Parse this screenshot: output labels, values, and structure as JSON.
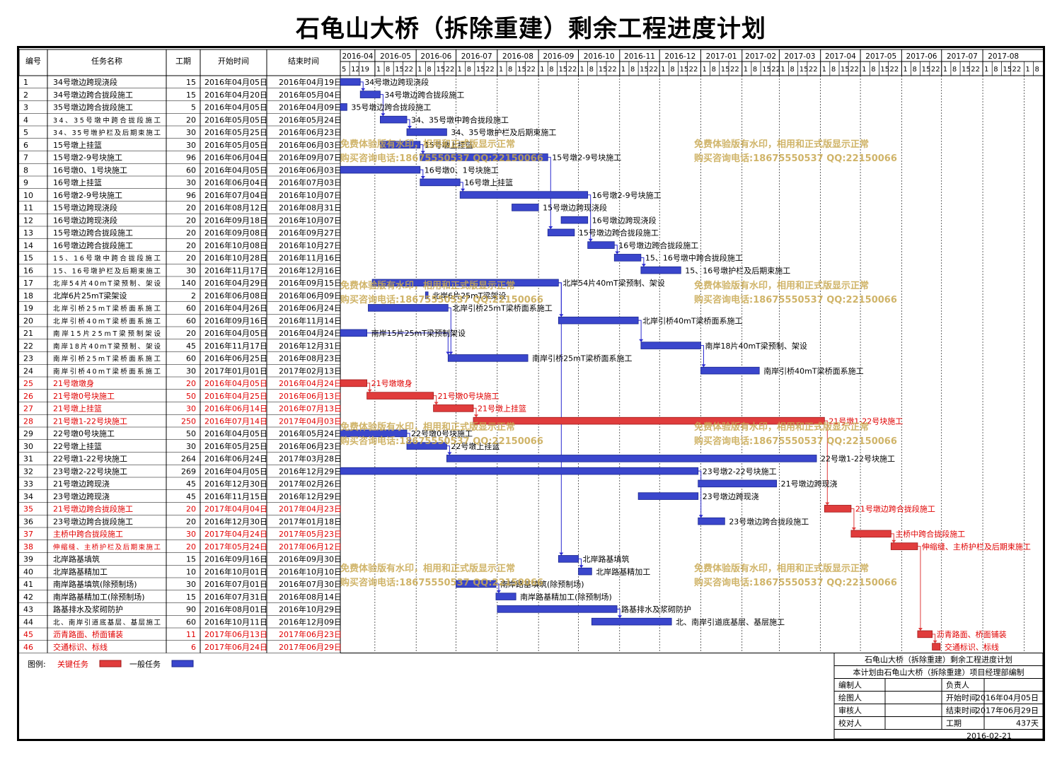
{
  "title": "石龟山大桥（拆除重建）剩余工程进度计划",
  "columns": {
    "id": "编号",
    "name": "任务名称",
    "dur": "工期",
    "start": "开始时间",
    "end": "结束时间"
  },
  "timeline_months": [
    "2016-04",
    "2016-05",
    "2016-06",
    "2016-07",
    "2016-08",
    "2016-09",
    "2016-10",
    "2016-11",
    "2016-12",
    "2017-01",
    "2017-02",
    "2017-03",
    "2017-04",
    "2017-05",
    "2017-06",
    "2017-07",
    "2017-08"
  ],
  "week_labels": [
    [
      "5",
      "12",
      "19"
    ],
    [
      "1",
      "8",
      "15",
      "22"
    ],
    [
      "1",
      "8",
      "15",
      "22"
    ],
    [
      "1",
      "8",
      "15",
      "22"
    ],
    [
      "1",
      "8",
      "15",
      "22"
    ],
    [
      "1",
      "8",
      "15",
      "22"
    ],
    [
      "1",
      "8",
      "15",
      "22"
    ],
    [
      "1",
      "8",
      "15",
      "22"
    ],
    [
      "1",
      "8",
      "15",
      "22"
    ],
    [
      "1",
      "8",
      "15",
      "22"
    ],
    [
      "1",
      "8",
      "15",
      "22"
    ],
    [
      "1",
      "8",
      "15",
      "22"
    ],
    [
      "1",
      "8",
      "15",
      "22"
    ],
    [
      "1",
      "8",
      "15",
      "22"
    ],
    [
      "1",
      "8",
      "15",
      "22"
    ],
    [
      "1",
      "8",
      "15",
      "22"
    ],
    [
      "1",
      "8",
      "15",
      "22"
    ],
    [
      "1",
      "8"
    ]
  ],
  "legend": {
    "label": "图例:",
    "critical": "关键任务",
    "normal": "一般任务"
  },
  "colors": {
    "critical": "#e03c3c",
    "normal": "#3a46cc",
    "critical_text": "#e00000",
    "watermark": "#c8a850",
    "link": "#2a2ad0"
  },
  "watermarks": {
    "line1": "免费体验版有水印，相用和正式版显示正常",
    "line2": "购买咨询电话:18675550537 QQ:22150066"
  },
  "info_box": {
    "title": "石龟山大桥（拆除重建）剩余工程进度计划",
    "subtitle": "本计划由石龟山大桥（拆除重建）项目经理部编制",
    "rows": [
      [
        "编制人",
        "",
        "负责人",
        ""
      ],
      [
        "绘图人",
        "",
        "开始时间",
        "2016年04月05日"
      ],
      [
        "审核人",
        "",
        "结束时间",
        "2017年06月29日"
      ],
      [
        "校对人",
        "",
        "工期",
        "437天"
      ]
    ],
    "date": "2016-02-21"
  },
  "chart_data": {
    "type": "gantt",
    "title": "石龟山大桥（拆除重建）剩余工程进度计划",
    "tasks": [
      {
        "id": "1",
        "name": "34号墩边跨现浇段",
        "dur": 15,
        "start": "2016-04-05",
        "end": "2016-04-19",
        "start_label": "2016年04月05日",
        "end_label": "2016年04月19日",
        "critical": false,
        "bar_label": "34号墩边跨现浇段"
      },
      {
        "id": "2",
        "name": "34号墩边跨合拢段施工",
        "dur": 15,
        "start": "2016-04-20",
        "end": "2016-05-04",
        "start_label": "2016年04月20日",
        "end_label": "2016年05月04日",
        "critical": false,
        "bar_label": "34号墩边跨合拢段施工"
      },
      {
        "id": "3",
        "name": "35号墩边跨合拢段施工",
        "dur": 5,
        "start": "2016-04-05",
        "end": "2016-04-09",
        "start_label": "2016年04月05日",
        "end_label": "2016年04月09日",
        "critical": false,
        "bar_label": "35号墩边跨合拢段施工"
      },
      {
        "id": "4",
        "name": "34、35号墩中跨合拢段施工",
        "dur": 20,
        "start": "2016-05-05",
        "end": "2016-05-24",
        "start_label": "2016年05月05日",
        "end_label": "2016年05月24日",
        "critical": false,
        "bar_label": "34、35号墩中跨合拢段施工"
      },
      {
        "id": "5",
        "name": "34、35号墩护栏及后期束施工",
        "dur": 30,
        "start": "2016-05-25",
        "end": "2016-06-23",
        "start_label": "2016年05月25日",
        "end_label": "2016年06月23日",
        "critical": false,
        "bar_label": "34、35号墩护栏及后期束施工"
      },
      {
        "id": "6",
        "name": "15号墩上挂篮",
        "dur": 30,
        "start": "2016-05-05",
        "end": "2016-06-03",
        "start_label": "2016年05月05日",
        "end_label": "2016年06月03日",
        "critical": false,
        "bar_label": "15号墩上挂篮"
      },
      {
        "id": "7",
        "name": "15号墩2-9号块施工",
        "dur": 96,
        "start": "2016-06-04",
        "end": "2016-09-07",
        "start_label": "2016年06月04日",
        "end_label": "2016年09月07日",
        "critical": false,
        "bar_label": "15号墩2-9号块施工"
      },
      {
        "id": "8",
        "name": "16号墩0、1号块施工",
        "dur": 60,
        "start": "2016-04-05",
        "end": "2016-06-03",
        "start_label": "2016年04月05日",
        "end_label": "2016年06月03日",
        "critical": false,
        "bar_label": "16号墩0、1号块施工"
      },
      {
        "id": "9",
        "name": "16号墩上挂篮",
        "dur": 30,
        "start": "2016-06-04",
        "end": "2016-07-03",
        "start_label": "2016年06月04日",
        "end_label": "2016年07月03日",
        "critical": false,
        "bar_label": "16号墩上挂篮"
      },
      {
        "id": "10",
        "name": "16号墩2-9号块施工",
        "dur": 96,
        "start": "2016-07-04",
        "end": "2016-10-07",
        "start_label": "2016年07月04日",
        "end_label": "2016年10月07日",
        "critical": false,
        "bar_label": "16号墩2-9号块施工"
      },
      {
        "id": "11",
        "name": "15号墩边跨现浇段",
        "dur": 20,
        "start": "2016-08-12",
        "end": "2016-08-31",
        "start_label": "2016年08月12日",
        "end_label": "2016年08月31日",
        "critical": false,
        "bar_label": "15号墩边跨现浇段"
      },
      {
        "id": "12",
        "name": "16号墩边跨现浇段",
        "dur": 20,
        "start": "2016-09-18",
        "end": "2016-10-07",
        "start_label": "2016年09月18日",
        "end_label": "2016年10月07日",
        "critical": false,
        "bar_label": "16号墩边跨现浇段"
      },
      {
        "id": "13",
        "name": "15号墩边跨合拢段施工",
        "dur": 20,
        "start": "2016-09-08",
        "end": "2016-09-27",
        "start_label": "2016年09月08日",
        "end_label": "2016年09月27日",
        "critical": false,
        "bar_label": "15号墩边跨合拢段施工"
      },
      {
        "id": "14",
        "name": "16号墩边跨合拢段施工",
        "dur": 20,
        "start": "2016-10-08",
        "end": "2016-10-27",
        "start_label": "2016年10月08日",
        "end_label": "2016年10月27日",
        "critical": false,
        "bar_label": "16号墩边跨合拢段施工"
      },
      {
        "id": "15",
        "name": "15、16号墩中跨合拢段施工",
        "dur": 20,
        "start": "2016-10-28",
        "end": "2016-11-16",
        "start_label": "2016年10月28日",
        "end_label": "2016年11月16日",
        "critical": false,
        "bar_label": "15、16号墩中跨合拢段施工"
      },
      {
        "id": "16",
        "name": "15、16号墩护栏及后期束施工",
        "dur": 30,
        "start": "2016-11-17",
        "end": "2016-12-16",
        "start_label": "2016年11月17日",
        "end_label": "2016年12月16日",
        "critical": false,
        "bar_label": "15、16号墩护栏及后期束施工"
      },
      {
        "id": "17",
        "name": "北岸54片40mT梁预制、架设",
        "dur": 140,
        "start": "2016-04-29",
        "end": "2016-09-15",
        "start_label": "2016年04月29日",
        "end_label": "2016年09月15日",
        "critical": false,
        "bar_label": "北岸54片40mT梁预制、架设"
      },
      {
        "id": "18",
        "name": "北岸6片25mT梁架设",
        "dur": 2,
        "start": "2016-06-08",
        "end": "2016-06-09",
        "start_label": "2016年06月08日",
        "end_label": "2016年06月09日",
        "critical": false,
        "bar_label": "北岸6片25mT梁架设"
      },
      {
        "id": "19",
        "name": "北岸引桥25mT梁桥面系施工",
        "dur": 60,
        "start": "2016-04-26",
        "end": "2016-06-24",
        "start_label": "2016年04月26日",
        "end_label": "2016年06月24日",
        "critical": false,
        "bar_label": "北岸引桥25mT梁桥面系施工"
      },
      {
        "id": "20",
        "name": "北岸引桥40mT梁桥面系施工",
        "dur": 60,
        "start": "2016-09-16",
        "end": "2016-11-14",
        "start_label": "2016年09月16日",
        "end_label": "2016年11月14日",
        "critical": false,
        "bar_label": "北岸引桥40mT梁桥面系施工"
      },
      {
        "id": "21",
        "name": "南岸15片25mT梁预制架设",
        "dur": 20,
        "start": "2016-04-05",
        "end": "2016-04-24",
        "start_label": "2016年04月05日",
        "end_label": "2016年04月24日",
        "critical": false,
        "bar_label": "南岸15片25mT梁预制架设"
      },
      {
        "id": "22",
        "name": "南岸18片40mT梁预制、架设",
        "dur": 45,
        "start": "2016-11-17",
        "end": "2016-12-31",
        "start_label": "2016年11月17日",
        "end_label": "2016年12月31日",
        "critical": false,
        "bar_label": "南岸18片40mT梁预制、架设"
      },
      {
        "id": "23",
        "name": "南岸引桥25mT梁桥面系施工",
        "dur": 60,
        "start": "2016-06-25",
        "end": "2016-08-23",
        "start_label": "2016年06月25日",
        "end_label": "2016年08月23日",
        "critical": false,
        "bar_label": "南岸引桥25mT梁桥面系施工"
      },
      {
        "id": "24",
        "name": "南岸引桥40mT梁桥面系施工",
        "dur": 30,
        "start": "2017-01-01",
        "end": "2017-02-13",
        "start_label": "2017年01月01日",
        "end_label": "2017年02月13日",
        "critical": false,
        "bar_label": "南岸引桥40mT梁桥面系施工"
      },
      {
        "id": "25",
        "name": "21号墩墩身",
        "dur": 20,
        "start": "2016-04-05",
        "end": "2016-04-24",
        "start_label": "2016年04月05日",
        "end_label": "2016年04月24日",
        "critical": true,
        "bar_label": "21号墩墩身"
      },
      {
        "id": "26",
        "name": "21号墩0号块施工",
        "dur": 50,
        "start": "2016-04-25",
        "end": "2016-06-13",
        "start_label": "2016年04月25日",
        "end_label": "2016年06月13日",
        "critical": true,
        "bar_label": "21号墩0号块施工"
      },
      {
        "id": "27",
        "name": "21号墩上挂篮",
        "dur": 30,
        "start": "2016-06-14",
        "end": "2016-07-13",
        "start_label": "2016年06月14日",
        "end_label": "2016年07月13日",
        "critical": true,
        "bar_label": "21号墩上挂篮"
      },
      {
        "id": "28",
        "name": "21号墩1-22号块施工",
        "dur": 250,
        "start": "2016-07-14",
        "end": "2017-04-03",
        "start_label": "2016年07月14日",
        "end_label": "2017年04月03日",
        "critical": true,
        "bar_label": "21号墩1-22号块施工"
      },
      {
        "id": "29",
        "name": "22号墩0号块施工",
        "dur": 50,
        "start": "2016-04-05",
        "end": "2016-05-24",
        "start_label": "2016年04月05日",
        "end_label": "2016年05月24日",
        "critical": false,
        "bar_label": "22号墩0号块施工"
      },
      {
        "id": "30",
        "name": "22号墩上挂篮",
        "dur": 30,
        "start": "2016-05-25",
        "end": "2016-06-23",
        "start_label": "2016年05月25日",
        "end_label": "2016年06月23日",
        "critical": false,
        "bar_label": "22号墩上挂篮"
      },
      {
        "id": "31",
        "name": "22号墩1-22号块施工",
        "dur": 264,
        "start": "2016-06-24",
        "end": "2017-03-28",
        "start_label": "2016年06月24日",
        "end_label": "2017年03月28日",
        "critical": false,
        "bar_label": "22号墩1-22号块施工"
      },
      {
        "id": "32",
        "name": "23号墩2-22号块施工",
        "dur": 269,
        "start": "2016-04-05",
        "end": "2016-12-29",
        "start_label": "2016年04月05日",
        "end_label": "2016年12月29日",
        "critical": false,
        "bar_label": "23号墩2-22号块施工"
      },
      {
        "id": "33",
        "name": "21号墩边跨现浇",
        "dur": 45,
        "start": "2016-12-30",
        "end": "2017-02-26",
        "start_label": "2016年12月30日",
        "end_label": "2017年02月26日",
        "critical": false,
        "bar_label": "21号墩边跨现浇"
      },
      {
        "id": "34",
        "name": "23号墩边跨现浇",
        "dur": 45,
        "start": "2016-11-15",
        "end": "2016-12-29",
        "start_label": "2016年11月15日",
        "end_label": "2016年12月29日",
        "critical": false,
        "bar_label": "23号墩边跨现浇"
      },
      {
        "id": "35",
        "name": "21号墩边跨合拢段施工",
        "dur": 20,
        "start": "2017-04-04",
        "end": "2017-04-23",
        "start_label": "2017年04月04日",
        "end_label": "2017年04月23日",
        "critical": true,
        "bar_label": "21号墩边跨合拢段施工"
      },
      {
        "id": "36",
        "name": "23号墩边跨合拢段施工",
        "dur": 20,
        "start": "2016-12-30",
        "end": "2017-01-18",
        "start_label": "2016年12月30日",
        "end_label": "2017年01月18日",
        "critical": false,
        "bar_label": "23号墩边跨合拢段施工"
      },
      {
        "id": "37",
        "name": "主桥中跨合拢段施工",
        "dur": 30,
        "start": "2017-04-24",
        "end": "2017-05-23",
        "start_label": "2017年04月24日",
        "end_label": "2017年05月23日",
        "critical": true,
        "bar_label": "主桥中跨合拢段施工"
      },
      {
        "id": "38",
        "name": "伸缩缝、主桥护栏及后期束施工",
        "dur": 20,
        "start": "2017-05-24",
        "end": "2017-06-12",
        "start_label": "2017年05月24日",
        "end_label": "2017年06月12日",
        "critical": true,
        "bar_label": "伸缩缝、主桥护栏及后期束施工"
      },
      {
        "id": "39",
        "name": "北岸路基填筑",
        "dur": 15,
        "start": "2016-09-16",
        "end": "2016-09-30",
        "start_label": "2016年09月16日",
        "end_label": "2016年09月30日",
        "critical": false,
        "bar_label": "北岸路基填筑"
      },
      {
        "id": "40",
        "name": "北岸路基精加工",
        "dur": 10,
        "start": "2016-10-01",
        "end": "2016-10-10",
        "start_label": "2016年10月01日",
        "end_label": "2016年10月10日",
        "critical": false,
        "bar_label": "北岸路基精加工"
      },
      {
        "id": "41",
        "name": "南岸路基填筑(除预制场)",
        "dur": 30,
        "start": "2016-07-01",
        "end": "2016-07-30",
        "start_label": "2016年07月01日",
        "end_label": "2016年07月30日",
        "critical": false,
        "bar_label": "南岸路基填筑(除预制场)"
      },
      {
        "id": "42",
        "name": "南岸路基精加工(除预制场)",
        "dur": 15,
        "start": "2016-07-31",
        "end": "2016-08-14",
        "start_label": "2016年07月31日",
        "end_label": "2016年08月14日",
        "critical": false,
        "bar_label": "南岸路基精加工(除预制场)"
      },
      {
        "id": "43",
        "name": "路基排水及浆砌防护",
        "dur": 90,
        "start": "2016-08-01",
        "end": "2016-10-29",
        "start_label": "2016年08月01日",
        "end_label": "2016年10月29日",
        "critical": false,
        "bar_label": "路基排水及浆砌防护"
      },
      {
        "id": "44",
        "name": "北、南岸引道底基层、基层施工",
        "dur": 60,
        "start": "2016-10-11",
        "end": "2016-12-09",
        "start_label": "2016年10月11日",
        "end_label": "2016年12月09日",
        "critical": false,
        "bar_label": "北、南岸引道底基层、基层施工"
      },
      {
        "id": "45",
        "name": "沥青路面、桥面铺装",
        "dur": 11,
        "start": "2017-06-13",
        "end": "2017-06-23",
        "start_label": "2017年06月13日",
        "end_label": "2017年06月23日",
        "critical": true,
        "bar_label": "沥青路面、桥面铺装"
      },
      {
        "id": "46",
        "name": "交通标识、标线",
        "dur": 6,
        "start": "2017-06-24",
        "end": "2017-06-29",
        "start_label": "2017年06月24日",
        "end_label": "2017年06月29日",
        "critical": true,
        "bar_label": "交通标识、标线"
      }
    ],
    "links": [
      [
        1,
        2
      ],
      [
        2,
        4
      ],
      [
        4,
        5
      ],
      [
        6,
        7
      ],
      [
        7,
        13
      ],
      [
        8,
        9
      ],
      [
        9,
        10
      ],
      [
        10,
        14
      ],
      [
        14,
        15
      ],
      [
        15,
        16
      ],
      [
        17,
        20
      ],
      [
        20,
        22
      ],
      [
        22,
        24
      ],
      [
        21,
        23
      ],
      [
        19,
        23
      ],
      [
        25,
        26
      ],
      [
        26,
        27
      ],
      [
        27,
        28
      ],
      [
        28,
        35
      ],
      [
        29,
        30
      ],
      [
        30,
        31
      ],
      [
        32,
        36
      ],
      [
        35,
        37
      ],
      [
        37,
        38
      ],
      [
        38,
        45
      ],
      [
        45,
        46
      ],
      [
        17,
        39
      ],
      [
        39,
        40
      ],
      [
        41,
        42
      ],
      [
        43,
        44
      ]
    ]
  }
}
